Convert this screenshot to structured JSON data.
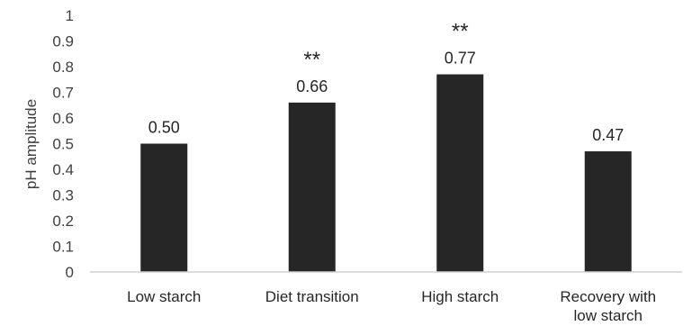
{
  "chart_data": {
    "type": "bar",
    "categories": [
      "Low starch",
      "Diet transition",
      "High starch",
      "Recovery with low starch"
    ],
    "category_lines": [
      [
        "Low starch"
      ],
      [
        "Diet transition"
      ],
      [
        "High starch"
      ],
      [
        "Recovery with",
        "low starch"
      ]
    ],
    "values": [
      0.5,
      0.66,
      0.77,
      0.47
    ],
    "data_labels": [
      "0.50",
      "0.66",
      "0.77",
      "0.47"
    ],
    "annotations": [
      "",
      "**",
      "**",
      ""
    ],
    "title": "",
    "xlabel": "",
    "ylabel": "pH amplitude",
    "ylim": [
      0,
      1
    ],
    "yticks": [
      "0",
      "0.1",
      "0.2",
      "0.3",
      "0.4",
      "0.5",
      "0.6",
      "0.7",
      "0.8",
      "0.9",
      "1"
    ],
    "grid": false,
    "bar_color": "#262626"
  }
}
